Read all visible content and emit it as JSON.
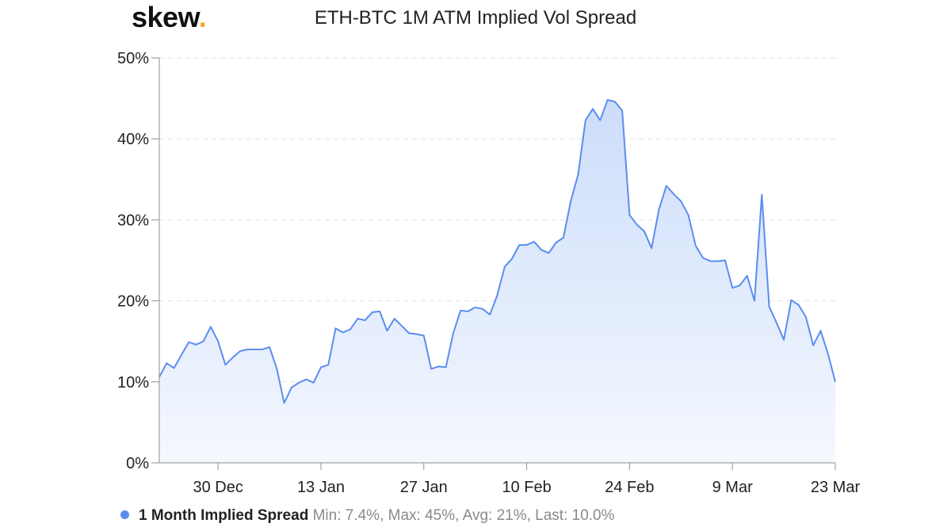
{
  "brand": {
    "name": "skew",
    "dot": "."
  },
  "chart_data": {
    "type": "area",
    "title": "ETH-BTC 1M ATM Implied Vol Spread",
    "xlabel": "",
    "ylabel": "",
    "ylim": [
      0,
      50
    ],
    "y_ticks": [
      0,
      10,
      20,
      30,
      40,
      50
    ],
    "y_tick_labels": [
      "0%",
      "10%",
      "20%",
      "30%",
      "40%",
      "50%"
    ],
    "x_range": [
      "2019-12-22",
      "2020-03-30"
    ],
    "x_ticks": [
      {
        "date": "2019-12-30",
        "label": "30 Dec"
      },
      {
        "date": "2020-01-13",
        "label": "13 Jan"
      },
      {
        "date": "2020-01-27",
        "label": "27 Jan"
      },
      {
        "date": "2020-02-10",
        "label": "10 Feb"
      },
      {
        "date": "2020-02-24",
        "label": "24 Feb"
      },
      {
        "date": "2020-03-09",
        "label": "9 Mar"
      },
      {
        "date": "2020-03-23",
        "label": "23 Mar"
      }
    ],
    "grid": true,
    "legend_position": "bottom-left",
    "color": "#5b8def",
    "series": [
      {
        "name": "1 Month Implied Spread",
        "stats": "Min: 7.4%, Max: 45%, Avg: 21%, Last: 10.0%",
        "points": [
          [
            "2019-12-22",
            10.6
          ],
          [
            "2019-12-23",
            12.3
          ],
          [
            "2019-12-24",
            11.7
          ],
          [
            "2019-12-25",
            13.3
          ],
          [
            "2019-12-26",
            14.9
          ],
          [
            "2019-12-27",
            14.6
          ],
          [
            "2019-12-28",
            15.0
          ],
          [
            "2019-12-29",
            16.8
          ],
          [
            "2019-12-30",
            15.0
          ],
          [
            "2019-12-31",
            12.1
          ],
          [
            "2020-01-01",
            13.0
          ],
          [
            "2020-01-02",
            13.8
          ],
          [
            "2020-01-03",
            14.0
          ],
          [
            "2020-01-04",
            14.0
          ],
          [
            "2020-01-05",
            14.0
          ],
          [
            "2020-01-06",
            14.3
          ],
          [
            "2020-01-07",
            11.6
          ],
          [
            "2020-01-08",
            7.4
          ],
          [
            "2020-01-09",
            9.3
          ],
          [
            "2020-01-10",
            9.9
          ],
          [
            "2020-01-11",
            10.3
          ],
          [
            "2020-01-12",
            9.9
          ],
          [
            "2020-01-13",
            11.8
          ],
          [
            "2020-01-14",
            12.1
          ],
          [
            "2020-01-15",
            16.6
          ],
          [
            "2020-01-16",
            16.1
          ],
          [
            "2020-01-17",
            16.5
          ],
          [
            "2020-01-18",
            17.8
          ],
          [
            "2020-01-19",
            17.6
          ],
          [
            "2020-01-20",
            18.6
          ],
          [
            "2020-01-21",
            18.7
          ],
          [
            "2020-01-22",
            16.3
          ],
          [
            "2020-01-23",
            17.8
          ],
          [
            "2020-01-24",
            16.9
          ],
          [
            "2020-01-25",
            16.0
          ],
          [
            "2020-01-26",
            15.9
          ],
          [
            "2020-01-27",
            15.7
          ],
          [
            "2020-01-28",
            11.6
          ],
          [
            "2020-01-29",
            11.9
          ],
          [
            "2020-01-30",
            11.8
          ],
          [
            "2020-01-31",
            16.0
          ],
          [
            "2020-02-01",
            18.8
          ],
          [
            "2020-02-02",
            18.7
          ],
          [
            "2020-02-03",
            19.2
          ],
          [
            "2020-02-04",
            19.0
          ],
          [
            "2020-02-05",
            18.3
          ],
          [
            "2020-02-06",
            20.7
          ],
          [
            "2020-02-07",
            24.2
          ],
          [
            "2020-02-08",
            25.2
          ],
          [
            "2020-02-09",
            26.9
          ],
          [
            "2020-02-10",
            26.9
          ],
          [
            "2020-02-11",
            27.3
          ],
          [
            "2020-02-12",
            26.3
          ],
          [
            "2020-02-13",
            25.9
          ],
          [
            "2020-02-14",
            27.2
          ],
          [
            "2020-02-15",
            27.8
          ],
          [
            "2020-02-16",
            32.3
          ],
          [
            "2020-02-17",
            35.6
          ],
          [
            "2020-02-18",
            42.3
          ],
          [
            "2020-02-19",
            43.7
          ],
          [
            "2020-02-20",
            42.3
          ],
          [
            "2020-02-21",
            44.8
          ],
          [
            "2020-02-22",
            44.6
          ],
          [
            "2020-02-23",
            43.5
          ],
          [
            "2020-02-24",
            30.6
          ],
          [
            "2020-02-25",
            29.4
          ],
          [
            "2020-02-26",
            28.6
          ],
          [
            "2020-02-27",
            26.5
          ],
          [
            "2020-02-28",
            31.3
          ],
          [
            "2020-02-29",
            34.2
          ],
          [
            "2020-03-01",
            33.2
          ],
          [
            "2020-03-02",
            32.3
          ],
          [
            "2020-03-03",
            30.6
          ],
          [
            "2020-03-04",
            26.8
          ],
          [
            "2020-03-05",
            25.3
          ],
          [
            "2020-03-06",
            24.9
          ],
          [
            "2020-03-07",
            24.9
          ],
          [
            "2020-03-08",
            25.0
          ],
          [
            "2020-03-09",
            21.6
          ],
          [
            "2020-03-10",
            21.9
          ],
          [
            "2020-03-11",
            23.1
          ],
          [
            "2020-03-12",
            20.0
          ],
          [
            "2020-03-13",
            33.1
          ],
          [
            "2020-03-14",
            19.3
          ],
          [
            "2020-03-15",
            17.3
          ],
          [
            "2020-03-16",
            15.2
          ],
          [
            "2020-03-17",
            20.1
          ],
          [
            "2020-03-18",
            19.5
          ],
          [
            "2020-03-19",
            18.0
          ],
          [
            "2020-03-20",
            14.5
          ],
          [
            "2020-03-21",
            16.3
          ],
          [
            "2020-03-22",
            13.5
          ],
          [
            "2020-03-23",
            10.0
          ]
        ]
      }
    ]
  }
}
